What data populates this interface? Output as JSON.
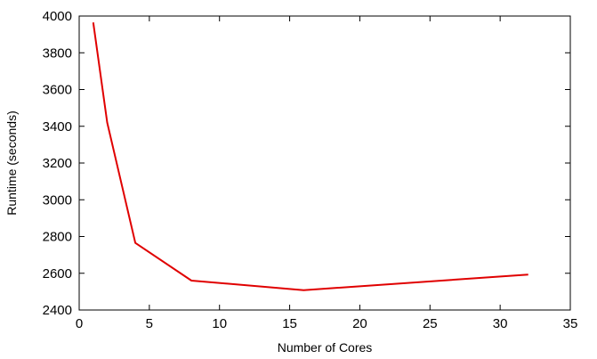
{
  "chart_data": {
    "type": "line",
    "title": "",
    "xlabel": "Number of Cores",
    "ylabel": "Runtime (seconds)",
    "xlim": [
      0,
      35
    ],
    "ylim": [
      2400,
      4000
    ],
    "xticks": [
      0,
      5,
      10,
      15,
      20,
      25,
      30,
      35
    ],
    "yticks": [
      2400,
      2600,
      2800,
      3000,
      3200,
      3400,
      3600,
      3800,
      4000
    ],
    "grid": false,
    "legend": "none",
    "series": [
      {
        "color": "#e00000",
        "x": [
          1,
          2,
          4,
          8,
          16,
          32
        ],
        "y": [
          3965,
          3420,
          2765,
          2560,
          2508,
          2593
        ]
      }
    ]
  }
}
